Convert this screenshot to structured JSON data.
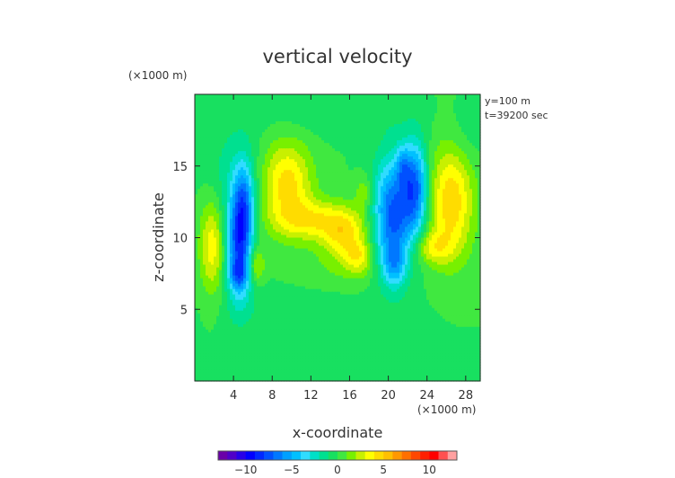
{
  "chart_data": {
    "type": "heatmap",
    "title": "vertical velocity",
    "xlabel": "x-coordinate",
    "ylabel": "z-coordinate",
    "x_unit": "(×1000 m)",
    "y_unit": "(×1000 m)",
    "annotations": [
      "y=100 m",
      "t=39200 sec"
    ],
    "xlim": [
      0,
      29.5
    ],
    "ylim": [
      0,
      20
    ],
    "xticks": [
      {
        "value": 4,
        "label": "4"
      },
      {
        "value": 8,
        "label": "8"
      },
      {
        "value": 12,
        "label": "12"
      },
      {
        "value": 16,
        "label": "16"
      },
      {
        "value": 20,
        "label": "20"
      },
      {
        "value": 24,
        "label": "24"
      },
      {
        "value": 28,
        "label": "28"
      }
    ],
    "yticks": [
      {
        "value": 5,
        "label": "5"
      },
      {
        "value": 10,
        "label": "10"
      },
      {
        "value": 15,
        "label": "15"
      }
    ],
    "features": [
      {
        "x": 4.6,
        "z": 9.5,
        "sx": 0.9,
        "sz": 2.6,
        "amp": -7.5
      },
      {
        "x": 5.1,
        "z": 12.5,
        "sx": 0.7,
        "sz": 2.0,
        "amp": -4.0
      },
      {
        "x": 4.5,
        "z": 7.4,
        "sx": 0.7,
        "sz": 0.7,
        "amp": -3.0
      },
      {
        "x": 20.5,
        "z": 11.5,
        "sx": 1.4,
        "sz": 2.8,
        "amp": -7.5
      },
      {
        "x": 22.8,
        "z": 13.5,
        "sx": 0.9,
        "sz": 2.2,
        "amp": -6.5
      },
      {
        "x": 20.6,
        "z": 8.0,
        "sx": 0.8,
        "sz": 1.0,
        "amp": -3.0
      },
      {
        "x": 21.5,
        "z": 15.0,
        "sx": 0.5,
        "sz": 1.0,
        "amp": -2.5
      },
      {
        "x": 9.5,
        "z": 13.8,
        "sx": 1.8,
        "sz": 2.0,
        "amp": 4.5
      },
      {
        "x": 12.5,
        "z": 11.2,
        "sx": 3.0,
        "sz": 1.0,
        "amp": 3.6
      },
      {
        "x": 15.5,
        "z": 10.0,
        "sx": 1.6,
        "sz": 1.2,
        "amp": 3.4
      },
      {
        "x": 17.0,
        "z": 8.6,
        "sx": 1.0,
        "sz": 0.8,
        "amp": 2.8
      },
      {
        "x": 26.5,
        "z": 12.5,
        "sx": 1.6,
        "sz": 2.8,
        "amp": 4.8
      },
      {
        "x": 24.5,
        "z": 9.3,
        "sx": 1.4,
        "sz": 0.8,
        "amp": 2.8
      },
      {
        "x": 1.8,
        "z": 9.5,
        "sx": 0.9,
        "sz": 2.3,
        "amp": 3.8
      },
      {
        "x": 6.3,
        "z": 8.1,
        "sx": 0.6,
        "sz": 0.9,
        "amp": 2.8
      },
      {
        "x": 17.5,
        "z": 13.2,
        "sx": 0.6,
        "sz": 0.8,
        "amp": 2.0
      },
      {
        "x": 4.0,
        "z": 14.0,
        "sx": 2.0,
        "sz": 3.0,
        "amp": -1.5
      },
      {
        "x": 14.0,
        "z": 7.5,
        "sx": 4.0,
        "sz": 1.2,
        "amp": 0.8
      },
      {
        "x": 10.0,
        "z": 5.0,
        "sx": 5.0,
        "sz": 1.5,
        "amp": -0.8
      },
      {
        "x": 18.0,
        "z": 2.0,
        "sx": 4.0,
        "sz": 2.0,
        "amp": -0.7
      },
      {
        "x": 15.0,
        "z": 18.5,
        "sx": 6.0,
        "sz": 1.0,
        "amp": -0.7
      },
      {
        "x": 28.0,
        "z": 17.0,
        "sx": 1.5,
        "sz": 1.5,
        "amp": -0.8
      }
    ],
    "colorbar": {
      "min": -13,
      "max": 13,
      "levels": 26,
      "ticks": [
        {
          "value": -10,
          "label": "−10"
        },
        {
          "value": -5,
          "label": "−5"
        },
        {
          "value": 0,
          "label": "0"
        },
        {
          "value": 5,
          "label": "5"
        },
        {
          "value": 10,
          "label": "10"
        }
      ],
      "colors": [
        "#6a00a8",
        "#5000c8",
        "#2800e8",
        "#0000ff",
        "#0028ff",
        "#0050ff",
        "#0078ff",
        "#00a0ff",
        "#00c0ff",
        "#30dcff",
        "#00e0c8",
        "#00e090",
        "#18e060",
        "#40e840",
        "#78f000",
        "#c8f000",
        "#ffff00",
        "#ffdc00",
        "#ffc000",
        "#ff9800",
        "#ff7000",
        "#ff4800",
        "#ff2000",
        "#ff0000",
        "#ff5050",
        "#ffa0a0"
      ]
    }
  }
}
